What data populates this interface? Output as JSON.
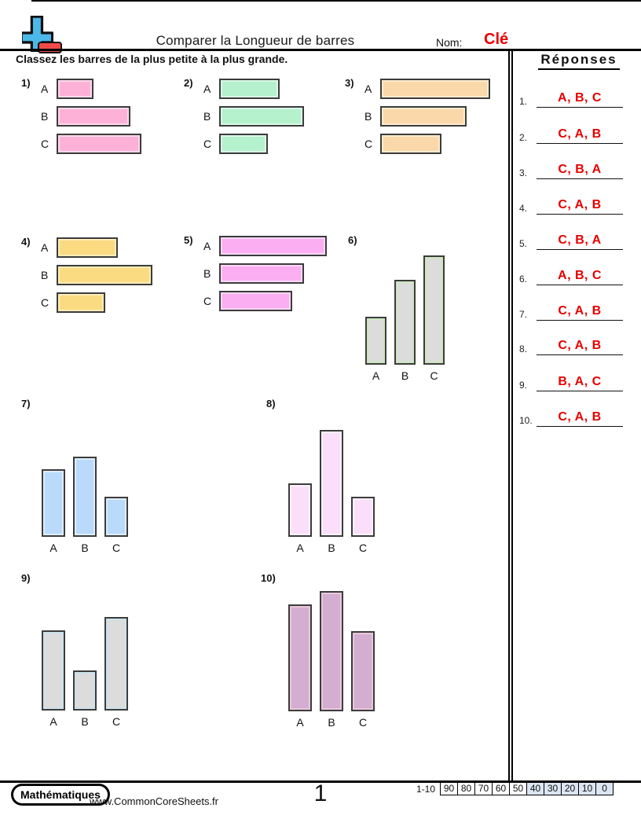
{
  "header": {
    "title": "Comparer la Longueur de barres",
    "nom_label": "Nom:",
    "nom_value": "Clé",
    "nom_value_color": "#e60000",
    "instruction": "Classez les barres de la plus petite à la plus grande."
  },
  "answers": {
    "title": "Réponses",
    "answer_color": "#e60000",
    "items": [
      {
        "num": "1.",
        "value": "A, B, C"
      },
      {
        "num": "2.",
        "value": "C, A, B"
      },
      {
        "num": "3.",
        "value": "C, B, A"
      },
      {
        "num": "4.",
        "value": "C, A, B"
      },
      {
        "num": "5.",
        "value": "C, B, A"
      },
      {
        "num": "6.",
        "value": "A, B, C"
      },
      {
        "num": "7.",
        "value": "C, A, B"
      },
      {
        "num": "8.",
        "value": "C, A, B"
      },
      {
        "num": "9.",
        "value": "B, A, C"
      },
      {
        "num": "10.",
        "value": "C, A, B"
      }
    ]
  },
  "problems": [
    {
      "id": "p1",
      "num": "1)",
      "type": "h",
      "fill": "#feb1d6",
      "edge": "#ffd9ec",
      "bars": [
        {
          "label": "A",
          "size": 47
        },
        {
          "label": "B",
          "size": 94
        },
        {
          "label": "C",
          "size": 108
        }
      ]
    },
    {
      "id": "p2",
      "num": "2)",
      "type": "h",
      "fill": "#b4f1cc",
      "edge": "#dbf9e8",
      "bars": [
        {
          "label": "A",
          "size": 77
        },
        {
          "label": "B",
          "size": 108
        },
        {
          "label": "C",
          "size": 62
        }
      ]
    },
    {
      "id": "p3",
      "num": "3)",
      "type": "h",
      "fill": "#fbd8a9",
      "edge": "#fdeccf",
      "bars": [
        {
          "label": "A",
          "size": 140
        },
        {
          "label": "B",
          "size": 110
        },
        {
          "label": "C",
          "size": 78
        }
      ]
    },
    {
      "id": "p4",
      "num": "4)",
      "type": "h",
      "fill": "#fbdb82",
      "edge": "#fdedb9",
      "bars": [
        {
          "label": "A",
          "size": 78
        },
        {
          "label": "B",
          "size": 122
        },
        {
          "label": "C",
          "size": 62
        }
      ]
    },
    {
      "id": "p5",
      "num": "5)",
      "type": "h",
      "fill": "#fbaef1",
      "edge": "#fdd7f8",
      "bars": [
        {
          "label": "A",
          "size": 137
        },
        {
          "label": "B",
          "size": 108
        },
        {
          "label": "C",
          "size": 93
        }
      ]
    },
    {
      "id": "p6",
      "num": "6)",
      "type": "v",
      "fill": "#dcdcdc",
      "edge": "#cde6c0",
      "bars": [
        {
          "label": "A",
          "size": 61
        },
        {
          "label": "B",
          "size": 108
        },
        {
          "label": "C",
          "size": 139
        }
      ]
    },
    {
      "id": "p7",
      "num": "7)",
      "type": "v",
      "fill": "#b9dafa",
      "edge": "#dfedfd",
      "bars": [
        {
          "label": "A",
          "size": 86
        },
        {
          "label": "B",
          "size": 102
        },
        {
          "label": "C",
          "size": 51
        }
      ]
    },
    {
      "id": "p8",
      "num": "8)",
      "type": "v",
      "fill": "#fbdffa",
      "edge": "#fdf1fd",
      "bars": [
        {
          "label": "A",
          "size": 68
        },
        {
          "label": "B",
          "size": 136
        },
        {
          "label": "C",
          "size": 51
        }
      ]
    },
    {
      "id": "p9",
      "num": "9)",
      "type": "v",
      "fill": "#dcdcdc",
      "edge": "#cbe2ec",
      "bars": [
        {
          "label": "A",
          "size": 102
        },
        {
          "label": "B",
          "size": 51
        },
        {
          "label": "C",
          "size": 119
        }
      ]
    },
    {
      "id": "p10",
      "num": "10)",
      "type": "v",
      "fill": "#d3aed1",
      "edge": "#eac7dc",
      "bars": [
        {
          "label": "A",
          "size": 136
        },
        {
          "label": "B",
          "size": 153
        },
        {
          "label": "C",
          "size": 102
        }
      ]
    }
  ],
  "chart_data": [
    {
      "problem": "1",
      "type": "bar",
      "orientation": "horizontal",
      "categories": [
        "A",
        "B",
        "C"
      ],
      "values": [
        47,
        94,
        108
      ],
      "units": "px",
      "answer_order": "A, B, C"
    },
    {
      "problem": "2",
      "type": "bar",
      "orientation": "horizontal",
      "categories": [
        "A",
        "B",
        "C"
      ],
      "values": [
        77,
        108,
        62
      ],
      "units": "px",
      "answer_order": "C, A, B"
    },
    {
      "problem": "3",
      "type": "bar",
      "orientation": "horizontal",
      "categories": [
        "A",
        "B",
        "C"
      ],
      "values": [
        140,
        110,
        78
      ],
      "units": "px",
      "answer_order": "C, B, A"
    },
    {
      "problem": "4",
      "type": "bar",
      "orientation": "horizontal",
      "categories": [
        "A",
        "B",
        "C"
      ],
      "values": [
        78,
        122,
        62
      ],
      "units": "px",
      "answer_order": "C, A, B"
    },
    {
      "problem": "5",
      "type": "bar",
      "orientation": "horizontal",
      "categories": [
        "A",
        "B",
        "C"
      ],
      "values": [
        137,
        108,
        93
      ],
      "units": "px",
      "answer_order": "C, B, A"
    },
    {
      "problem": "6",
      "type": "bar",
      "orientation": "vertical",
      "categories": [
        "A",
        "B",
        "C"
      ],
      "values": [
        61,
        108,
        139
      ],
      "units": "px",
      "answer_order": "A, B, C"
    },
    {
      "problem": "7",
      "type": "bar",
      "orientation": "vertical",
      "categories": [
        "A",
        "B",
        "C"
      ],
      "values": [
        86,
        102,
        51
      ],
      "units": "px",
      "answer_order": "C, A, B"
    },
    {
      "problem": "8",
      "type": "bar",
      "orientation": "vertical",
      "categories": [
        "A",
        "B",
        "C"
      ],
      "values": [
        68,
        136,
        51
      ],
      "units": "px",
      "answer_order": "C, A, B"
    },
    {
      "problem": "9",
      "type": "bar",
      "orientation": "vertical",
      "categories": [
        "A",
        "B",
        "C"
      ],
      "values": [
        102,
        51,
        119
      ],
      "units": "px",
      "answer_order": "B, A, C"
    },
    {
      "problem": "10",
      "type": "bar",
      "orientation": "vertical",
      "categories": [
        "A",
        "B",
        "C"
      ],
      "values": [
        136,
        153,
        102
      ],
      "units": "px",
      "answer_order": "C, A, B"
    }
  ],
  "footer": {
    "brand": "Mathématiques",
    "url": "www.CommonCoreSheets.fr",
    "page_number": "1",
    "scale_label": "1-10",
    "highlight_color": "#dbe5f3",
    "scale_cells": [
      {
        "value": "90",
        "highlighted": false
      },
      {
        "value": "80",
        "highlighted": false
      },
      {
        "value": "70",
        "highlighted": false
      },
      {
        "value": "60",
        "highlighted": false
      },
      {
        "value": "50",
        "highlighted": false
      },
      {
        "value": "40",
        "highlighted": true
      },
      {
        "value": "30",
        "highlighted": true
      },
      {
        "value": "20",
        "highlighted": true
      },
      {
        "value": "10",
        "highlighted": true
      },
      {
        "value": "0",
        "highlighted": true
      }
    ]
  }
}
